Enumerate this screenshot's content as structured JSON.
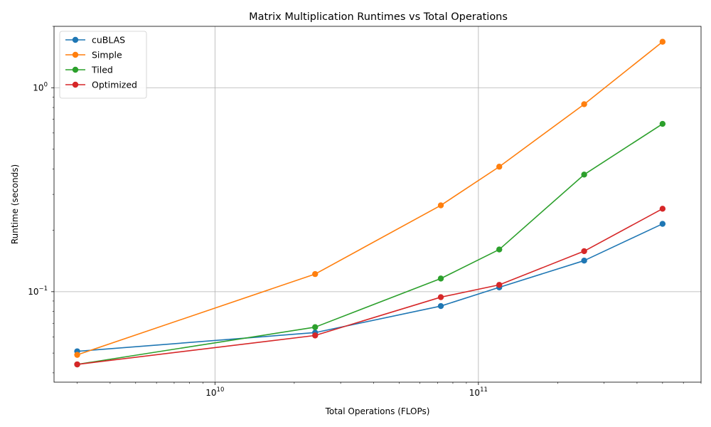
{
  "chart_data": {
    "type": "line",
    "title": "Matrix Multiplication Runtimes vs Total Operations",
    "xlabel": "Total Operations (FLOPs)",
    "ylabel": "Runtime (seconds)",
    "xscale": "log",
    "yscale": "log",
    "xlim": [
      2450000000.0,
      700000000000.0
    ],
    "ylim": [
      0.036,
      2.0
    ],
    "xticks": [
      {
        "value": 10000000000.0,
        "base": "10",
        "exp": "10"
      },
      {
        "value": 100000000000.0,
        "base": "10",
        "exp": "11"
      }
    ],
    "yticks": [
      {
        "value": 0.1,
        "base": "10",
        "exp": "−1"
      },
      {
        "value": 1,
        "base": "10",
        "exp": "0"
      }
    ],
    "grid": true,
    "legend_position": "top-left",
    "x": [
      3000000000.0,
      24000000000.0,
      72000000000.0,
      120000000000.0,
      252000000000.0,
      500000000000.0
    ],
    "series": [
      {
        "name": "cuBLAS",
        "color": "#1f77b4",
        "values": [
          0.051,
          0.063,
          0.085,
          0.105,
          0.142,
          0.215
        ]
      },
      {
        "name": "Simple",
        "color": "#ff7f0e",
        "values": [
          0.049,
          0.122,
          0.265,
          0.41,
          0.83,
          1.68
        ]
      },
      {
        "name": "Tiled",
        "color": "#2ca02c",
        "values": [
          0.044,
          0.067,
          0.116,
          0.161,
          0.375,
          0.665
        ]
      },
      {
        "name": "Optimized",
        "color": "#d62728",
        "values": [
          0.044,
          0.061,
          0.094,
          0.108,
          0.158,
          0.255
        ]
      }
    ]
  }
}
